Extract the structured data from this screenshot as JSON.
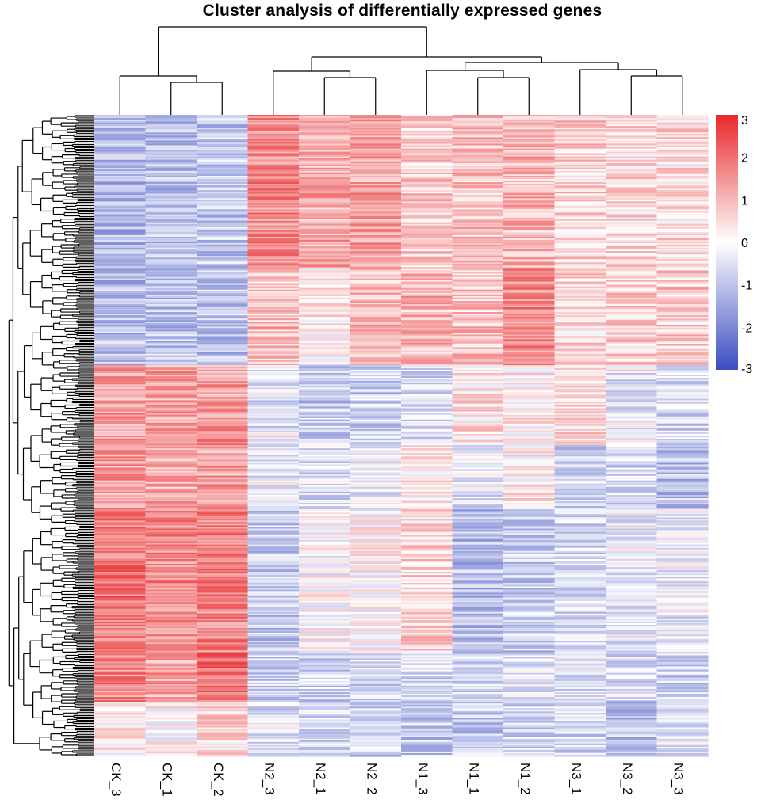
{
  "chart_data": {
    "type": "heatmap",
    "title": "Cluster analysis of differentially expressed genes",
    "columns": [
      "CK_3",
      "CK_1",
      "CK_2",
      "N2_3",
      "N2_1",
      "N2_2",
      "N1_3",
      "N1_1",
      "N1_2",
      "N3_1",
      "N3_2",
      "N3_3"
    ],
    "value_range": [
      -3,
      3
    ],
    "colorbar": {
      "ticks": [
        "3",
        "2",
        "1",
        "0",
        "-1",
        "-2",
        "-3"
      ],
      "low_color": "#3b4cc0",
      "mid_color": "#ffffff",
      "high_color": "#e8282a"
    },
    "row_blocks": [
      {
        "rows": 96,
        "mean": [
          -1.2,
          -1.0,
          -0.9,
          1.6,
          1.2,
          1.3,
          0.7,
          0.9,
          1.0,
          0.6,
          0.5,
          0.5
        ]
      },
      {
        "rows": 60,
        "mean": [
          -1.1,
          -1.0,
          -1.0,
          0.9,
          0.2,
          0.9,
          1.0,
          0.9,
          1.6,
          0.5,
          0.6,
          0.7
        ]
      },
      {
        "rows": 50,
        "mean": [
          1.3,
          1.3,
          1.4,
          -0.4,
          -0.9,
          -0.8,
          -0.5,
          0.4,
          0.2,
          0.4,
          -0.4,
          -0.6
        ]
      },
      {
        "rows": 40,
        "mean": [
          1.3,
          1.1,
          1.3,
          -0.3,
          -0.5,
          -0.2,
          0.2,
          -0.4,
          0.3,
          -0.8,
          -0.7,
          -1.0
        ]
      },
      {
        "rows": 90,
        "mean": [
          1.9,
          1.6,
          1.7,
          -0.9,
          0.0,
          0.1,
          0.6,
          -1.1,
          -0.8,
          -0.6,
          -0.3,
          -0.3
        ]
      },
      {
        "rows": 30,
        "mean": [
          1.7,
          1.3,
          2.0,
          -0.7,
          -0.7,
          -0.6,
          -0.6,
          -0.6,
          -0.5,
          -0.4,
          -0.5,
          -0.7
        ]
      },
      {
        "rows": 34,
        "mean": [
          0.3,
          0.1,
          0.5,
          -0.5,
          -0.6,
          -0.8,
          -0.9,
          -0.9,
          -0.7,
          -0.6,
          -1.0,
          -0.4
        ]
      }
    ]
  }
}
